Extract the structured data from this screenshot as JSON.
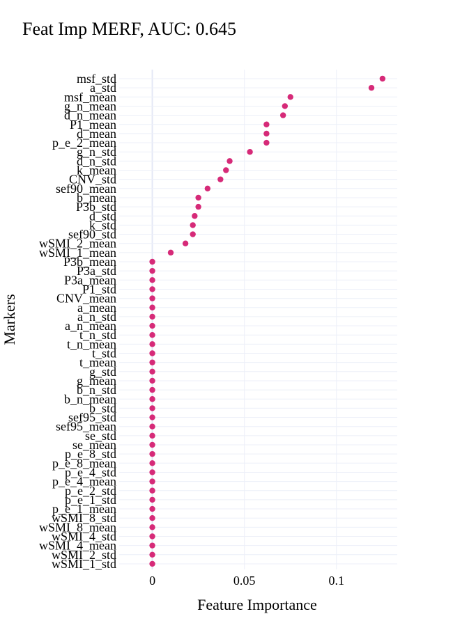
{
  "chart_data": {
    "type": "scatter",
    "title": "Feat Imp MERF, AUC: 0.645",
    "xlabel": "Feature Importance",
    "ylabel": "Markers",
    "xlim": [
      -0.018,
      0.133
    ],
    "xticks": [
      0,
      0.05,
      0.1
    ],
    "xtick_labels": [
      "0",
      "0.05",
      "0.1"
    ],
    "grid": true,
    "marker_color": "#d62a78",
    "categories": [
      "msf_std",
      "a_std",
      "msf_mean",
      "g_n_mean",
      "d_n_mean",
      "P1_mean",
      "d_mean",
      "p_e_2_mean",
      "g_n_std",
      "d_n_std",
      "k_mean",
      "CNV_std",
      "sef90_mean",
      "b_mean",
      "P3b_std",
      "d_std",
      "k_std",
      "sef90_std",
      "wSMI_2_mean",
      "wSMI_1_mean",
      "P3b_mean",
      "P3a_std",
      "P3a_mean",
      "P1_std",
      "CNV_mean",
      "a_mean",
      "a_n_std",
      "a_n_mean",
      "t_n_std",
      "t_n_mean",
      "t_std",
      "t_mean",
      "g_std",
      "g_mean",
      "b_n_std",
      "b_n_mean",
      "b_std",
      "sef95_std",
      "sef95_mean",
      "se_std",
      "se_mean",
      "p_e_8_std",
      "p_e_8_mean",
      "p_e_4_std",
      "p_e_4_mean",
      "p_e_2_std",
      "p_e_1_std",
      "p_e_1_mean",
      "wSMI_8_std",
      "wSMI_8_mean",
      "wSMI_4_std",
      "wSMI_4_mean",
      "wSMI_2_std",
      "wSMI_1_std"
    ],
    "values": [
      0.125,
      0.119,
      0.075,
      0.072,
      0.071,
      0.062,
      0.062,
      0.062,
      0.053,
      0.042,
      0.04,
      0.037,
      0.03,
      0.025,
      0.025,
      0.023,
      0.022,
      0.022,
      0.018,
      0.01,
      0,
      0,
      0,
      0,
      0,
      0,
      0,
      0,
      0,
      0,
      0,
      0,
      0,
      0,
      0,
      0,
      0,
      0,
      0,
      0,
      0,
      0,
      0,
      0,
      0,
      0,
      0,
      0,
      0,
      0,
      0,
      0,
      0,
      0
    ]
  }
}
